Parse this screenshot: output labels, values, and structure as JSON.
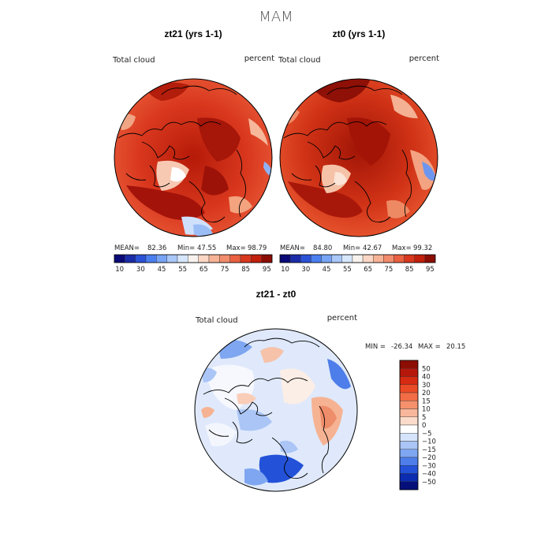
{
  "figure": {
    "title": "MAM"
  },
  "panels": [
    {
      "title": "zt21 (yrs 1-1)",
      "variable": "Total cloud",
      "units": "percent",
      "stats": {
        "mean_label": "MEAN=",
        "mean": "82.36",
        "min_label": "Min=",
        "min": "47.55",
        "max_label": "Max=",
        "max": "98.79"
      },
      "colorbar": {
        "ticks": [
          "10",
          "30",
          "45",
          "55",
          "65",
          "75",
          "85",
          "95"
        ],
        "colors": [
          "#0a0a78",
          "#1b2ca8",
          "#2b52d6",
          "#4a7ff0",
          "#78a4f5",
          "#a9c7f8",
          "#d6e6fb",
          "#f7f2ee",
          "#fbd6c4",
          "#f7b396",
          "#f28c6c",
          "#ea6040",
          "#d9381e",
          "#c21f0c",
          "#8c0d04"
        ]
      }
    },
    {
      "title": "zt0 (yrs 1-1)",
      "variable": "Total cloud",
      "units": "percent",
      "stats": {
        "mean_label": "MEAN=",
        "mean": "84.80",
        "min_label": "Min=",
        "min": "42.67",
        "max_label": "Max=",
        "max": "99.32"
      },
      "colorbar": {
        "ticks": [
          "10",
          "30",
          "45",
          "55",
          "65",
          "75",
          "85",
          "95"
        ],
        "colors": [
          "#0a0a78",
          "#1b2ca8",
          "#2b52d6",
          "#4a7ff0",
          "#78a4f5",
          "#a9c7f8",
          "#d6e6fb",
          "#f7f2ee",
          "#fbd6c4",
          "#f7b396",
          "#f28c6c",
          "#ea6040",
          "#d9381e",
          "#c21f0c",
          "#8c0d04"
        ]
      }
    },
    {
      "title": "zt21 - zt0",
      "variable": "Total cloud",
      "units": "percent",
      "stats": {
        "min_label": "MIN =",
        "min": "-26.34",
        "max_label": "MAX =",
        "max": "20.15"
      },
      "colorbar": {
        "ticks": [
          "50",
          "40",
          "30",
          "20",
          "15",
          "10",
          "5",
          "0",
          "−5",
          "−10",
          "−15",
          "−20",
          "−30",
          "−40",
          "−50"
        ],
        "colors": [
          "#8c0d04",
          "#b5170a",
          "#d62a12",
          "#ea4a26",
          "#f26c46",
          "#f5916c",
          "#f8b79a",
          "#fbdccb",
          "#ffffff",
          "#d6e4fb",
          "#aac5f6",
          "#7ea6f1",
          "#4d7ee9",
          "#2352d8",
          "#0b2bb0",
          "#050f7a"
        ]
      }
    }
  ]
}
